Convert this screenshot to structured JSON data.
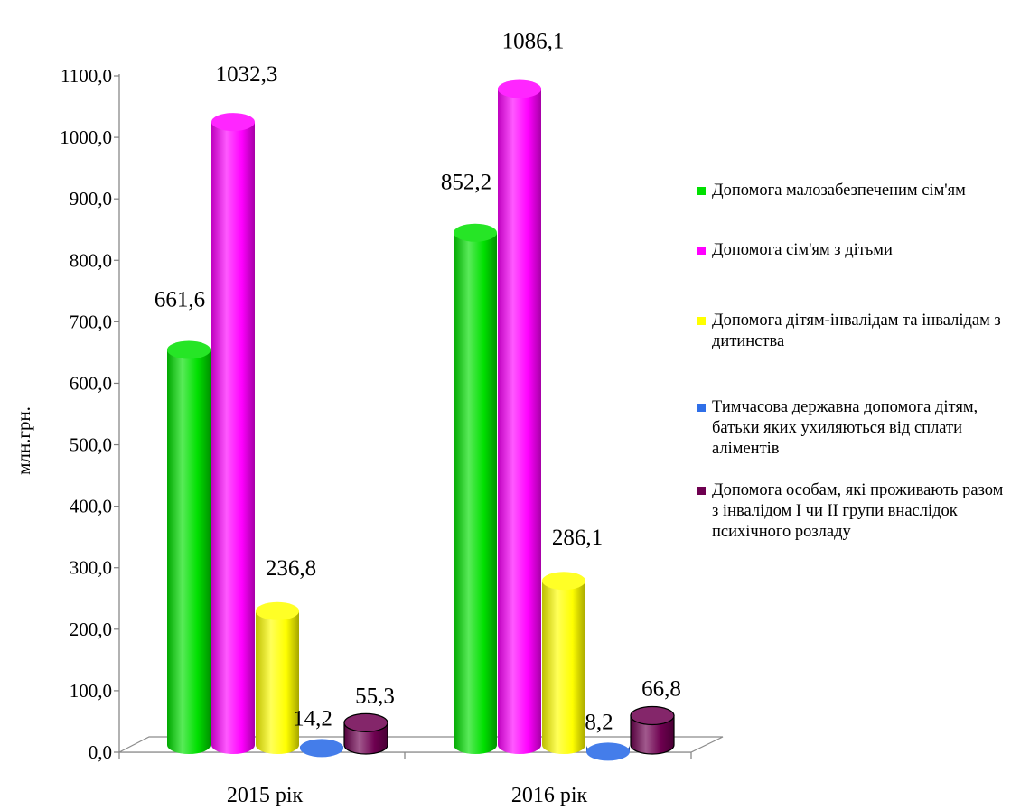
{
  "chart_data": {
    "type": "bar",
    "ylabel": "млн.грн.",
    "ylim": [
      0,
      1100
    ],
    "yticks": [
      "0,0",
      "100,0",
      "200,0",
      "300,0",
      "400,0",
      "500,0",
      "600,0",
      "700,0",
      "800,0",
      "900,0",
      "1000,0",
      "1100,0"
    ],
    "categories": [
      "2015 рік",
      "2016 рік"
    ],
    "legend_position": "right",
    "series": [
      {
        "name": "Допомога малозабезпеченим сім'ям",
        "color": "#00e000",
        "values": [
          661.6,
          852.2
        ],
        "labels": [
          "661,6",
          "852,2"
        ]
      },
      {
        "name": "Допомога сім'ям з дітьми",
        "color": "#ff00ff",
        "values": [
          1032.3,
          1086.1
        ],
        "labels": [
          "1032,3",
          "1086,1"
        ]
      },
      {
        "name": "Допомога дітям-інвалідам та інвалідам з дитинства",
        "color": "#ffff00",
        "values": [
          236.8,
          286.1
        ],
        "labels": [
          "236,8",
          "286,1"
        ]
      },
      {
        "name": "Тимчасова державна допомога дітям, батьки яких ухиляються від сплати аліментів",
        "color": "#2f6fe8",
        "values": [
          14.2,
          8.2
        ],
        "labels": [
          "14,2",
          "8,2"
        ]
      },
      {
        "name": "Допомога особам, які проживають разом з інвалідом I чи II групи внаслідок психічного розладу",
        "color": "#6e0050",
        "values": [
          55.3,
          66.8
        ],
        "labels": [
          "55,3",
          "66,8"
        ]
      }
    ]
  }
}
